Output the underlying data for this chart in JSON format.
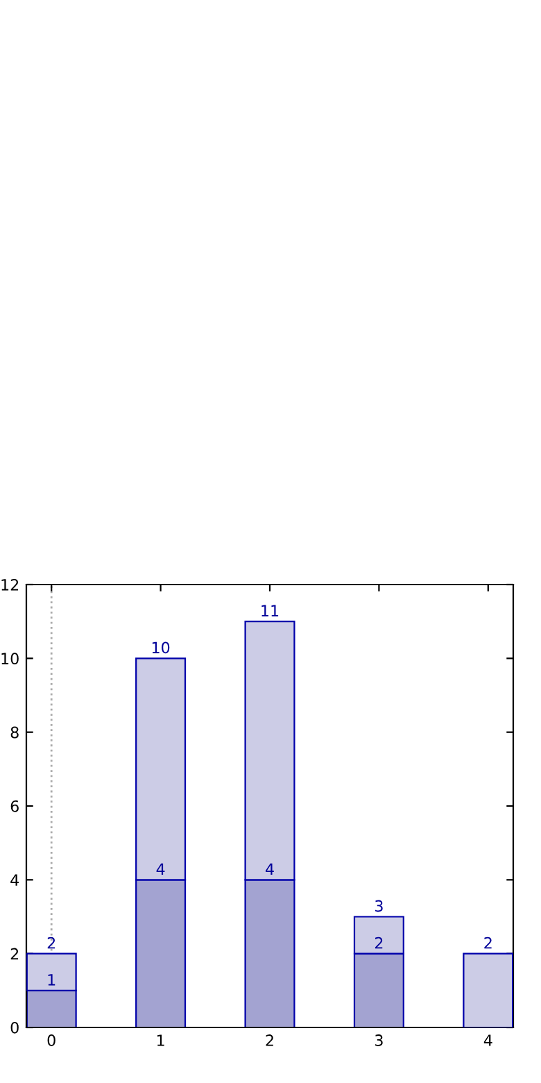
{
  "chart_data": {
    "type": "bar",
    "x": [
      0,
      1,
      2,
      3,
      4
    ],
    "stacked": true,
    "series": [
      {
        "color": "#a3a3d1",
        "values": [
          1,
          4,
          4,
          2,
          null
        ],
        "value_labels": [
          "1",
          "4",
          "4",
          "2",
          null
        ]
      },
      {
        "color": "#cccce6",
        "values": [
          1,
          6,
          7,
          1,
          2
        ]
      }
    ],
    "totals": [
      "2",
      "10",
      "11",
      "3",
      "2"
    ],
    "xlim": [
      -0.23,
      4.23
    ],
    "xticks": [
      0,
      1,
      2,
      3,
      4
    ],
    "ylim": [
      0,
      12
    ],
    "yticks": [
      0,
      2,
      4,
      6,
      8,
      10,
      12
    ],
    "ref_lines": [
      {
        "axis": "x",
        "value": 0,
        "color": "#aaaaaa",
        "line_style": "dotted"
      }
    ],
    "grid": false,
    "legend": false
  }
}
